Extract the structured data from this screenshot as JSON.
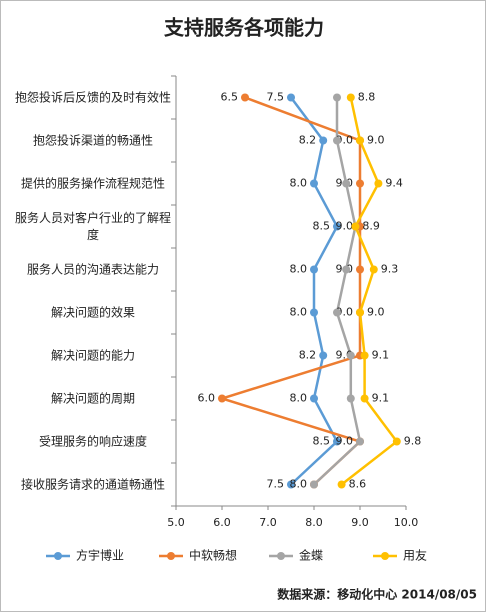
{
  "chart_data": {
    "type": "line",
    "orientation": "horizontal",
    "title": "支持服务各项能力",
    "categories": [
      "抱怨投诉后反馈的及时有效性",
      "抱怨投诉渠道的畅通性",
      "提供的服务操作流程规范性",
      "服务人员对客户行业的了解程度",
      "服务人员的沟通表达能力",
      "解决问题的效果",
      "解决问题的能力",
      "解决问题的周期",
      "受理服务的响应速度",
      "接收服务请求的通道畅通性"
    ],
    "series": [
      {
        "name": "方宇博业",
        "color": "#5b9bd5",
        "values": [
          7.5,
          8.2,
          8,
          8.5,
          8,
          8,
          8.2,
          8,
          8.5,
          7.5
        ],
        "value_labels": [
          "7.5",
          "8.2",
          "8.0",
          "8.5",
          "8.0",
          "8.0",
          "8.2",
          "8.0",
          "8.5",
          "7.5"
        ]
      },
      {
        "name": "中软畅想",
        "color": "#ed7d31",
        "values": [
          6.5,
          9,
          9,
          9,
          9,
          9,
          9,
          6,
          9,
          8
        ],
        "value_labels": [
          "6.5",
          "9.0",
          "9.0",
          "9.0",
          "9.0",
          "9.0",
          "9.0",
          "6.0",
          "9.0",
          "8.0"
        ]
      },
      {
        "name": "金蝶",
        "color": "#a5a5a5",
        "values": [
          8.5,
          8.5,
          8.7,
          8.9,
          8.7,
          8.5,
          8.8,
          8.8,
          9,
          8
        ]
      },
      {
        "name": "用友",
        "color": "#ffc000",
        "values": [
          8.8,
          9,
          9.4,
          8.9,
          9.3,
          9,
          9.1,
          9.1,
          9.8,
          8.6
        ],
        "value_labels": [
          "8.8",
          "9.0",
          "9.4",
          "8.9",
          "9.3",
          "9.0",
          "9.1",
          "9.1",
          "9.8",
          "8.6"
        ]
      }
    ],
    "xlim": [
      5,
      10
    ],
    "xticks": [
      {
        "value": 5,
        "label": "5.0"
      },
      {
        "value": 6,
        "label": "6.0"
      },
      {
        "value": 7,
        "label": "7.0"
      },
      {
        "value": 8,
        "label": "8.0"
      },
      {
        "value": 9,
        "label": "9.0"
      },
      {
        "value": 10,
        "label": "10.0"
      }
    ],
    "legend": "bottom",
    "source": "数据来源：移动化中心 2014/08/05"
  }
}
